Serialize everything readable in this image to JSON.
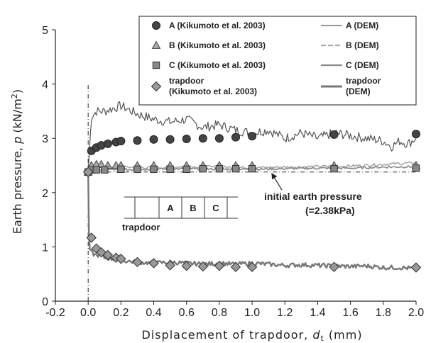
{
  "chart_data": {
    "type": "line",
    "xlabel_main": "Displacement of trapdoor, ",
    "xlabel_var": "d",
    "xlabel_sub": "t",
    "xlabel_unit": " (mm)",
    "ylabel_main": "Earth pressure, ",
    "ylabel_var": "p",
    "ylabel_unit": " (kN/m",
    "ylabel_sup": "2",
    "ylabel_close": ")",
    "xlim": [
      -0.2,
      2.0
    ],
    "ylim": [
      0,
      5
    ],
    "x_ticks": [
      -0.2,
      0,
      0.2,
      0.4,
      0.6,
      0.8,
      1,
      1.2,
      1.4,
      1.6,
      1.8,
      2
    ],
    "x_tick_labels": [
      "-0.2",
      "0.0",
      "0.2",
      "0.4",
      "0.6",
      "0.8",
      "1.0",
      "1.2",
      "1.4",
      "1.6",
      "1.8",
      "2.0"
    ],
    "y_ticks": [
      0,
      1,
      2,
      3,
      4,
      5
    ],
    "y_tick_labels": [
      "0",
      "1",
      "2",
      "3",
      "4",
      "5"
    ],
    "legend": {
      "placement": "top-right",
      "markers": [
        {
          "name": "A (Kikumoto et al. 2003)",
          "marker": "circle"
        },
        {
          "name": "B (Kikumoto et al. 2003)",
          "marker": "triangle"
        },
        {
          "name": "C (Kikumoto et al. 2003)",
          "marker": "square"
        },
        {
          "name": "trapdoor",
          "name2": "(Kikumoto et al. 2003)",
          "marker": "diamond"
        }
      ],
      "lines": [
        {
          "name": "A (DEM)"
        },
        {
          "name": "B (DEM)"
        },
        {
          "name": "C (DEM)"
        },
        {
          "name": "trapdoor",
          "name2": "(DEM)"
        }
      ]
    },
    "series": [
      {
        "name": "A (Kikumoto et al. 2003)",
        "marker": "circle",
        "x": [
          0.0,
          0.02,
          0.05,
          0.08,
          0.12,
          0.17,
          0.2,
          0.3,
          0.4,
          0.5,
          0.6,
          0.7,
          0.8,
          0.9,
          1.0,
          1.5,
          2.0
        ],
        "y": [
          2.38,
          2.77,
          2.83,
          2.87,
          2.9,
          2.93,
          2.95,
          2.96,
          2.98,
          2.98,
          2.99,
          3.0,
          3.0,
          3.02,
          3.04,
          3.07,
          3.08
        ]
      },
      {
        "name": "B (Kikumoto et al. 2003)",
        "marker": "triangle",
        "x": [
          0.0,
          0.02,
          0.05,
          0.08,
          0.12,
          0.17,
          0.2,
          0.3,
          0.4,
          0.5,
          0.6,
          0.7,
          0.8,
          0.9,
          1.0,
          1.5,
          2.0
        ],
        "y": [
          2.38,
          2.5,
          2.52,
          2.52,
          2.5,
          2.5,
          2.5,
          2.5,
          2.5,
          2.5,
          2.5,
          2.5,
          2.5,
          2.5,
          2.5,
          2.5,
          2.5
        ]
      },
      {
        "name": "C (Kikumoto et al. 2003)",
        "marker": "square",
        "x": [
          0.0,
          0.02,
          0.05,
          0.1,
          0.2,
          0.3,
          0.4,
          0.5,
          0.6,
          0.7,
          0.8,
          0.9,
          1.0,
          1.5,
          2.0
        ],
        "y": [
          2.38,
          2.42,
          2.42,
          2.42,
          2.43,
          2.43,
          2.43,
          2.43,
          2.43,
          2.44,
          2.44,
          2.44,
          2.44,
          2.44,
          2.45
        ]
      },
      {
        "name": "trapdoor (Kikumoto et al. 2003)",
        "marker": "diamond",
        "x": [
          0.0,
          0.02,
          0.05,
          0.08,
          0.12,
          0.17,
          0.2,
          0.3,
          0.4,
          0.5,
          0.6,
          0.7,
          0.8,
          0.9,
          1.0,
          1.5,
          2.0
        ],
        "y": [
          2.38,
          1.17,
          0.97,
          0.9,
          0.85,
          0.8,
          0.78,
          0.72,
          0.7,
          0.66,
          0.65,
          0.64,
          0.65,
          0.63,
          0.63,
          0.63,
          0.62
        ]
      },
      {
        "name": "A (DEM)",
        "line": true,
        "x": [
          0.0,
          0.02,
          0.05,
          0.1,
          0.15,
          0.2,
          0.3,
          0.4,
          0.5,
          0.6,
          0.7,
          0.8,
          0.9,
          1.0,
          1.1,
          1.2,
          1.3,
          1.4,
          1.5,
          1.6,
          1.7,
          1.8,
          1.85,
          1.9,
          1.95,
          2.0
        ],
        "y": [
          2.38,
          3.4,
          3.5,
          3.5,
          3.55,
          3.6,
          3.45,
          3.35,
          3.3,
          3.35,
          3.2,
          3.25,
          3.15,
          3.1,
          3.15,
          3.0,
          3.1,
          3.0,
          3.1,
          3.05,
          3.0,
          2.95,
          2.85,
          2.95,
          2.9,
          3.0
        ]
      },
      {
        "name": "B (DEM)",
        "line": true,
        "x": [
          0.0,
          0.02,
          0.1,
          0.2,
          0.4,
          0.6,
          0.8,
          1.0,
          1.2,
          1.4,
          1.6,
          1.8,
          2.0
        ],
        "y": [
          2.38,
          2.45,
          2.48,
          2.47,
          2.46,
          2.48,
          2.47,
          2.46,
          2.47,
          2.48,
          2.49,
          2.52,
          2.55
        ]
      },
      {
        "name": "C (DEM)",
        "line": true,
        "x": [
          0.0,
          0.02,
          0.1,
          0.2,
          0.4,
          0.6,
          0.8,
          1.0,
          1.2,
          1.4,
          1.6,
          1.8,
          2.0
        ],
        "y": [
          2.38,
          2.42,
          2.43,
          2.42,
          2.43,
          2.44,
          2.43,
          2.43,
          2.44,
          2.45,
          2.45,
          2.47,
          2.48
        ]
      },
      {
        "name": "trapdoor (DEM)",
        "line": true,
        "x": [
          0.0,
          0.005,
          0.01,
          0.02,
          0.04,
          0.06,
          0.1,
          0.15,
          0.2,
          0.3,
          0.4,
          0.5,
          0.6,
          0.7,
          0.8,
          0.9,
          1.0,
          1.1,
          1.2,
          1.3,
          1.4,
          1.5,
          1.6,
          1.7,
          1.8,
          1.9,
          2.0
        ],
        "y": [
          2.38,
          1.2,
          0.95,
          0.9,
          0.85,
          0.85,
          0.8,
          0.78,
          0.75,
          0.72,
          0.7,
          0.72,
          0.7,
          0.68,
          0.7,
          0.68,
          0.7,
          0.68,
          0.66,
          0.67,
          0.66,
          0.65,
          0.64,
          0.65,
          0.62,
          0.62,
          0.6
        ]
      }
    ],
    "reference_lines": [
      {
        "orientation": "vertical",
        "x": 0,
        "y_from": 0,
        "y_to": 4
      },
      {
        "orientation": "horizontal",
        "y": 2.38,
        "x_from": 0,
        "x_to": 2.0
      }
    ],
    "annotation": {
      "line1": "initial earth pressure",
      "line2": "(=2.38kPa)",
      "points_to": {
        "x": 1.12,
        "y": 2.38
      }
    },
    "inset": {
      "cells": [
        "A",
        "B",
        "C"
      ],
      "label": "trapdoor"
    }
  }
}
